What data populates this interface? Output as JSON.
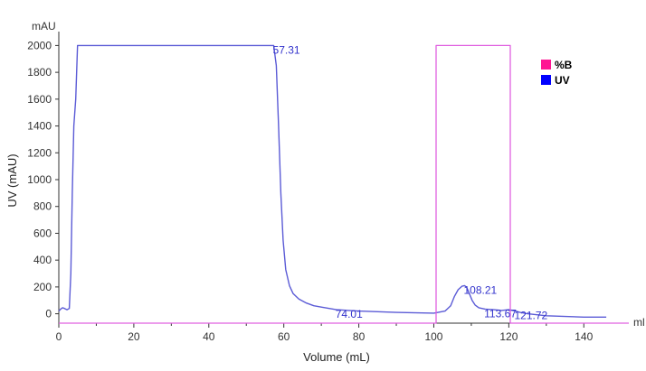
{
  "chart_data": {
    "type": "line",
    "title": "",
    "xlabel": "Volume (mL)",
    "ylabel": "UV (mAU)",
    "y_unit": "mAU",
    "x_unit": "ml",
    "xlim": [
      0,
      152
    ],
    "ylim": [
      -70,
      2070
    ],
    "x_ticks": [
      0,
      20,
      40,
      60,
      80,
      100,
      120,
      140
    ],
    "y_ticks": [
      0,
      200,
      400,
      600,
      800,
      1000,
      1200,
      1400,
      1600,
      1800,
      2000
    ],
    "grid": false,
    "legend_position": "top-right",
    "legend": [
      {
        "label": "%B",
        "color": "#ff1493"
      },
      {
        "label": "UV",
        "color": "#0000ff"
      }
    ],
    "series": [
      {
        "name": "UV",
        "color": "#5b5bd6",
        "x": [
          0,
          0.5,
          1,
          1.5,
          2.2,
          2.8,
          3.2,
          3.6,
          4.0,
          4.5,
          5,
          10,
          20,
          30,
          40,
          50,
          55,
          57.31,
          58,
          58.6,
          59.2,
          59.8,
          60.5,
          61.5,
          62.5,
          64,
          66,
          68,
          70,
          74.01,
          80,
          90,
          100,
          103,
          104.5,
          105.5,
          106.5,
          107.5,
          108.21,
          108.8,
          109.5,
          110.2,
          111,
          112,
          113.67,
          116,
          118,
          120,
          121.72,
          123,
          125,
          130,
          140,
          146
        ],
        "y": [
          20,
          35,
          45,
          40,
          30,
          40,
          300,
          900,
          1400,
          1600,
          2000,
          2000,
          2000,
          2000,
          2000,
          2000,
          2000,
          2000,
          1850,
          1400,
          900,
          550,
          330,
          210,
          150,
          110,
          80,
          60,
          50,
          30,
          20,
          10,
          5,
          20,
          60,
          130,
          180,
          205,
          210,
          195,
          150,
          100,
          65,
          45,
          35,
          30,
          25,
          30,
          20,
          10,
          0,
          -15,
          -25,
          -25
        ]
      },
      {
        "name": "%B",
        "color": "#e060e0",
        "x": [
          0,
          100.6,
          100.6,
          120.4,
          120.4,
          152
        ],
        "y": [
          -70,
          -70,
          2000,
          2000,
          -70,
          -70
        ]
      }
    ],
    "annotations": [
      {
        "text": "57.31",
        "x": 57.31,
        "y": 2000,
        "color": "#3333cc"
      },
      {
        "text": "74.01",
        "x": 74.01,
        "y": 30,
        "color": "#3333cc"
      },
      {
        "text": "108.21",
        "x": 108.21,
        "y": 210,
        "color": "#3333cc"
      },
      {
        "text": "113.67",
        "x": 113.67,
        "y": 35,
        "color": "#3333cc"
      },
      {
        "text": "121.72",
        "x": 121.72,
        "y": 20,
        "color": "#3333cc"
      }
    ]
  }
}
